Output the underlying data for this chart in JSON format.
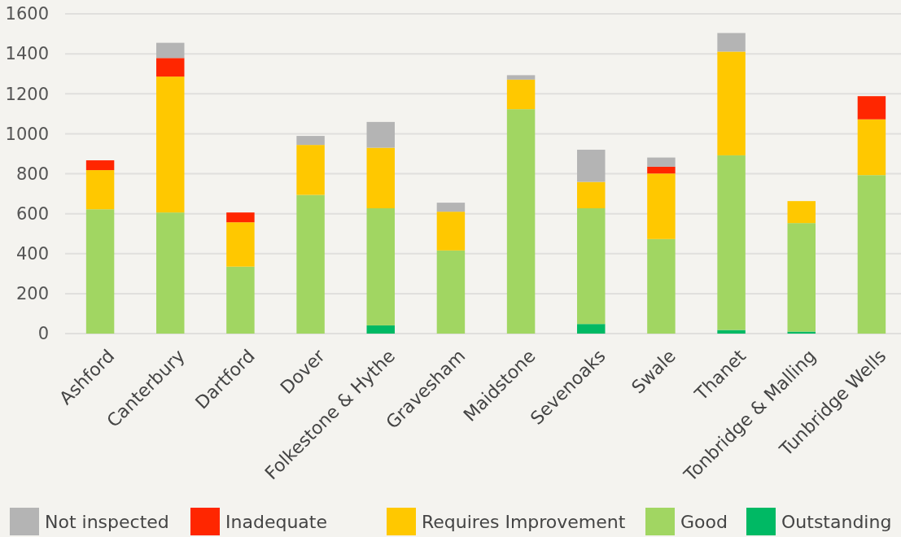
{
  "chart_data": {
    "type": "bar",
    "stacked": true,
    "categories": [
      "Ashford",
      "Canterbury",
      "Dartford",
      "Dover",
      "Folkestone & Hythe",
      "Gravesham",
      "Maidstone",
      "Sevenoaks",
      "Swale",
      "Thanet",
      "Tonbridge & Malling",
      "Tunbridge Wells"
    ],
    "series": [
      {
        "name": "Outstanding",
        "color": "#00b964",
        "values": [
          0,
          0,
          0,
          0,
          41,
          0,
          0,
          48,
          0,
          18,
          10,
          0
        ]
      },
      {
        "name": "Good",
        "color": "#a1d662",
        "values": [
          622,
          606,
          335,
          694,
          586,
          416,
          1123,
          579,
          473,
          874,
          543,
          793
        ]
      },
      {
        "name": "Requires Improvement",
        "color": "#ffc800",
        "values": [
          196,
          680,
          222,
          250,
          303,
          194,
          148,
          132,
          328,
          519,
          110,
          279
        ]
      },
      {
        "name": "Inadequate",
        "color": "#ff2600",
        "values": [
          49,
          93,
          49,
          0,
          0,
          0,
          0,
          0,
          34,
          0,
          0,
          116
        ]
      },
      {
        "name": "Not inspected",
        "color": "#b4b4b4",
        "values": [
          0,
          76,
          0,
          45,
          129,
          45,
          22,
          161,
          46,
          93,
          0,
          0
        ]
      }
    ],
    "ylim": [
      0,
      1600
    ],
    "yticks": [
      0,
      200,
      400,
      600,
      800,
      1000,
      1200,
      1400,
      1600
    ],
    "grid": "y",
    "legend": "bottom"
  }
}
